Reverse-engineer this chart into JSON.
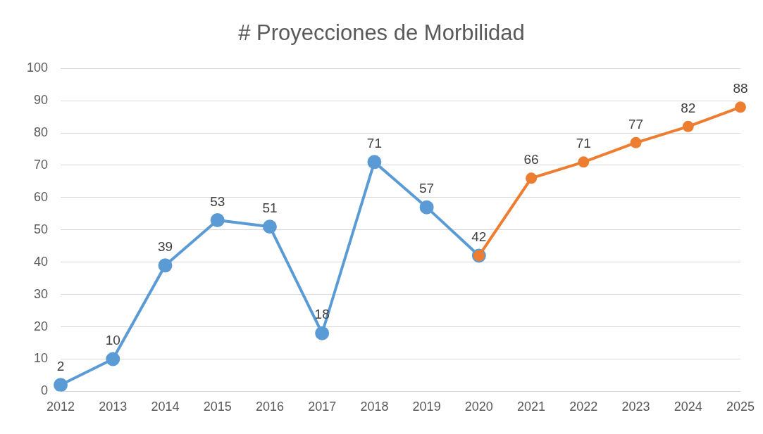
{
  "chart_data": {
    "type": "line",
    "title": "# Proyecciones de Morbilidad",
    "categories": [
      "2012",
      "2013",
      "2014",
      "2015",
      "2016",
      "2017",
      "2018",
      "2019",
      "2020",
      "2021",
      "2022",
      "2023",
      "2024",
      "2025"
    ],
    "series": [
      {
        "color": "#5b9bd5",
        "values": [
          2,
          10,
          39,
          53,
          51,
          18,
          71,
          57,
          42,
          null,
          null,
          null,
          null,
          null
        ],
        "value_labels": [
          "2",
          "10",
          "39",
          "53",
          "51",
          "18",
          "71",
          "57",
          "42",
          null,
          null,
          null,
          null,
          null
        ]
      },
      {
        "color": "#ed7d31",
        "values": [
          null,
          null,
          null,
          null,
          null,
          null,
          null,
          null,
          42,
          66,
          71,
          77,
          82,
          88
        ],
        "value_labels": [
          null,
          null,
          null,
          null,
          null,
          null,
          null,
          null,
          null,
          "66",
          "71",
          "77",
          "82",
          "88"
        ]
      }
    ],
    "ylim": [
      0,
      100
    ],
    "yticks": [
      0,
      10,
      20,
      30,
      40,
      50,
      60,
      70,
      80,
      90,
      100
    ],
    "grid": "y",
    "legend": false,
    "marker": "circle",
    "line_style": "solid"
  }
}
